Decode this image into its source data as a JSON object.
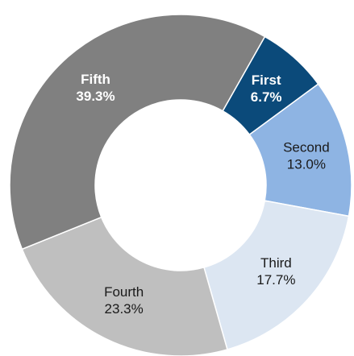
{
  "chart_data": {
    "type": "donut",
    "categories": [
      "First",
      "Second",
      "Third",
      "Fourth",
      "Fifth"
    ],
    "values": [
      6.7,
      13.0,
      17.7,
      23.3,
      39.3
    ],
    "value_labels": [
      "6.7%",
      "13.0%",
      "17.7%",
      "23.3%",
      "39.3%"
    ],
    "colors": [
      "#0b4a7a",
      "#8eb4e3",
      "#dce6f2",
      "#bfbfbf",
      "#808080"
    ]
  }
}
